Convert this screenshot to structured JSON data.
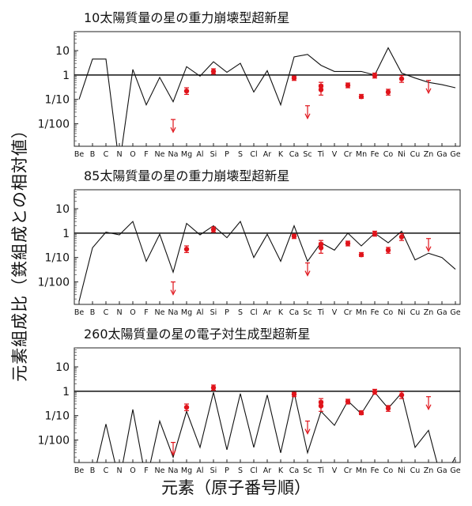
{
  "figure": {
    "ylabel": "元素組成比（鉄組成との相対値）",
    "xlabel": "元素（原子番号順）"
  },
  "chart_data": [
    {
      "type": "line",
      "title": "10太陽質量の星の重力崩壊型超新星",
      "y_scale": "log",
      "ylim": [
        0.0012,
        60
      ],
      "reference_line": 1,
      "yticks": [
        {
          "v": 10,
          "label": "10"
        },
        {
          "v": 1,
          "label": "1"
        },
        {
          "v": 0.1,
          "label": "1/10"
        },
        {
          "v": 0.01,
          "label": "1/100"
        }
      ],
      "categories": [
        "Be",
        "B",
        "C",
        "N",
        "O",
        "F",
        "Ne",
        "Na",
        "Mg",
        "Al",
        "Si",
        "P",
        "S",
        "Cl",
        "Ar",
        "K",
        "Ca",
        "Sc",
        "Ti",
        "V",
        "Cr",
        "Mn",
        "Fe",
        "Co",
        "Ni",
        "Cu",
        "Zn",
        "Ga",
        "Ge"
      ],
      "model_values": [
        0.1,
        4.5,
        4.5,
        0.0002,
        1.7,
        0.06,
        0.8,
        0.08,
        2.2,
        0.9,
        3.5,
        1.3,
        3.0,
        0.2,
        1.5,
        0.06,
        5.5,
        7.0,
        2.5,
        1.4,
        1.4,
        1.4,
        1.0,
        13.0,
        1.2,
        0.75,
        0.5,
        0.4,
        0.3
      ],
      "observed": [
        {
          "el": "Mg",
          "v": 0.22,
          "err": [
            0.16,
            0.3
          ]
        },
        {
          "el": "Si",
          "v": 1.4,
          "err": [
            1.1,
            1.8
          ]
        },
        {
          "el": "Ca",
          "v": 0.75,
          "err": [
            0.6,
            0.9
          ]
        },
        {
          "el": "Ti",
          "v": 0.25,
          "err": [
            0.15,
            0.4
          ]
        },
        {
          "el": "Ti",
          "v": 0.35,
          "err": [
            0.25,
            0.5
          ]
        },
        {
          "el": "Cr",
          "v": 0.38,
          "err": [
            0.3,
            0.47
          ]
        },
        {
          "el": "Mn",
          "v": 0.13,
          "err": [
            0.11,
            0.16
          ]
        },
        {
          "el": "Fe",
          "v": 0.95,
          "err": [
            0.75,
            1.2
          ]
        },
        {
          "el": "Co",
          "v": 0.2,
          "err": [
            0.15,
            0.26
          ]
        },
        {
          "el": "Ni",
          "v": 0.7,
          "err": [
            0.5,
            0.95
          ]
        }
      ],
      "upper_limits": [
        {
          "el": "Na",
          "v": 0.015
        },
        {
          "el": "Sc",
          "v": 0.055
        },
        {
          "el": "Zn",
          "v": 0.6
        }
      ]
    },
    {
      "type": "line",
      "title": "85太陽質量の星の重力崩壊型超新星",
      "y_scale": "log",
      "ylim": [
        0.0012,
        60
      ],
      "reference_line": 1,
      "yticks": [
        {
          "v": 10,
          "label": "10"
        },
        {
          "v": 1,
          "label": "1"
        },
        {
          "v": 0.1,
          "label": "1/10"
        },
        {
          "v": 0.01,
          "label": "1/100"
        }
      ],
      "categories": [
        "Be",
        "B",
        "C",
        "N",
        "O",
        "F",
        "Ne",
        "Na",
        "Mg",
        "Al",
        "Si",
        "P",
        "S",
        "Cl",
        "Ar",
        "K",
        "Ca",
        "Sc",
        "Ti",
        "V",
        "Cr",
        "Mn",
        "Fe",
        "Co",
        "Ni",
        "Cu",
        "Zn",
        "Ga",
        "Ge"
      ],
      "model_values": [
        0.0016,
        0.25,
        1.1,
        0.85,
        3.0,
        0.07,
        0.9,
        0.025,
        2.5,
        0.85,
        2.0,
        0.65,
        3.0,
        0.1,
        0.9,
        0.07,
        2.0,
        0.07,
        0.4,
        0.2,
        1.0,
        0.3,
        1.0,
        0.4,
        1.2,
        0.08,
        0.15,
        0.1,
        0.033
      ],
      "observed": [
        {
          "el": "Mg",
          "v": 0.22,
          "err": [
            0.16,
            0.3
          ]
        },
        {
          "el": "Si",
          "v": 1.4,
          "err": [
            1.1,
            1.8
          ]
        },
        {
          "el": "Ca",
          "v": 0.75,
          "err": [
            0.6,
            0.9
          ]
        },
        {
          "el": "Ti",
          "v": 0.25,
          "err": [
            0.15,
            0.4
          ]
        },
        {
          "el": "Ti",
          "v": 0.35,
          "err": [
            0.25,
            0.5
          ]
        },
        {
          "el": "Cr",
          "v": 0.38,
          "err": [
            0.3,
            0.47
          ]
        },
        {
          "el": "Mn",
          "v": 0.13,
          "err": [
            0.11,
            0.16
          ]
        },
        {
          "el": "Fe",
          "v": 0.95,
          "err": [
            0.75,
            1.2
          ]
        },
        {
          "el": "Co",
          "v": 0.2,
          "err": [
            0.15,
            0.26
          ]
        },
        {
          "el": "Ni",
          "v": 0.7,
          "err": [
            0.5,
            0.95
          ]
        }
      ],
      "upper_limits": [
        {
          "el": "Na",
          "v": 0.01
        },
        {
          "el": "Sc",
          "v": 0.06
        },
        {
          "el": "Zn",
          "v": 0.6
        }
      ]
    },
    {
      "type": "line",
      "title": "260太陽質量の星の電子対生成型超新星",
      "y_scale": "log",
      "ylim": [
        0.0012,
        60
      ],
      "reference_line": 1,
      "yticks": [
        {
          "v": 10,
          "label": "10"
        },
        {
          "v": 1,
          "label": "1"
        },
        {
          "v": 0.1,
          "label": "1/10"
        },
        {
          "v": 0.01,
          "label": "1/100"
        }
      ],
      "categories": [
        "Be",
        "B",
        "C",
        "N",
        "O",
        "F",
        "Ne",
        "Na",
        "Mg",
        "Al",
        "Si",
        "P",
        "S",
        "Cl",
        "Ar",
        "K",
        "Ca",
        "Sc",
        "Ti",
        "V",
        "Cr",
        "Mn",
        "Fe",
        "Co",
        "Ni",
        "Cu",
        "Zn",
        "Ga",
        "Ge"
      ],
      "model_values": [
        0.0002,
        0.0002,
        0.045,
        0.0002,
        0.18,
        0.0002,
        0.06,
        0.002,
        0.15,
        0.005,
        0.9,
        0.004,
        0.8,
        0.005,
        0.7,
        0.003,
        0.9,
        0.003,
        0.15,
        0.04,
        0.4,
        0.12,
        0.9,
        0.2,
        0.85,
        0.005,
        0.025,
        0.0002,
        0.002
      ],
      "observed": [
        {
          "el": "Mg",
          "v": 0.22,
          "err": [
            0.16,
            0.3
          ]
        },
        {
          "el": "Si",
          "v": 1.4,
          "err": [
            1.1,
            1.8
          ]
        },
        {
          "el": "Ca",
          "v": 0.75,
          "err": [
            0.6,
            0.9
          ]
        },
        {
          "el": "Ti",
          "v": 0.25,
          "err": [
            0.15,
            0.4
          ]
        },
        {
          "el": "Ti",
          "v": 0.35,
          "err": [
            0.25,
            0.5
          ]
        },
        {
          "el": "Cr",
          "v": 0.38,
          "err": [
            0.3,
            0.47
          ]
        },
        {
          "el": "Mn",
          "v": 0.13,
          "err": [
            0.11,
            0.16
          ]
        },
        {
          "el": "Fe",
          "v": 0.95,
          "err": [
            0.75,
            1.2
          ]
        },
        {
          "el": "Co",
          "v": 0.2,
          "err": [
            0.15,
            0.26
          ]
        },
        {
          "el": "Ni",
          "v": 0.7,
          "err": [
            0.5,
            0.95
          ]
        }
      ],
      "upper_limits": [
        {
          "el": "Na",
          "v": 0.008
        },
        {
          "el": "Sc",
          "v": 0.06
        },
        {
          "el": "Zn",
          "v": 0.6
        }
      ]
    }
  ],
  "colors": {
    "model_line": "#111111",
    "observed": "#e0141b",
    "reference": "#111111"
  }
}
